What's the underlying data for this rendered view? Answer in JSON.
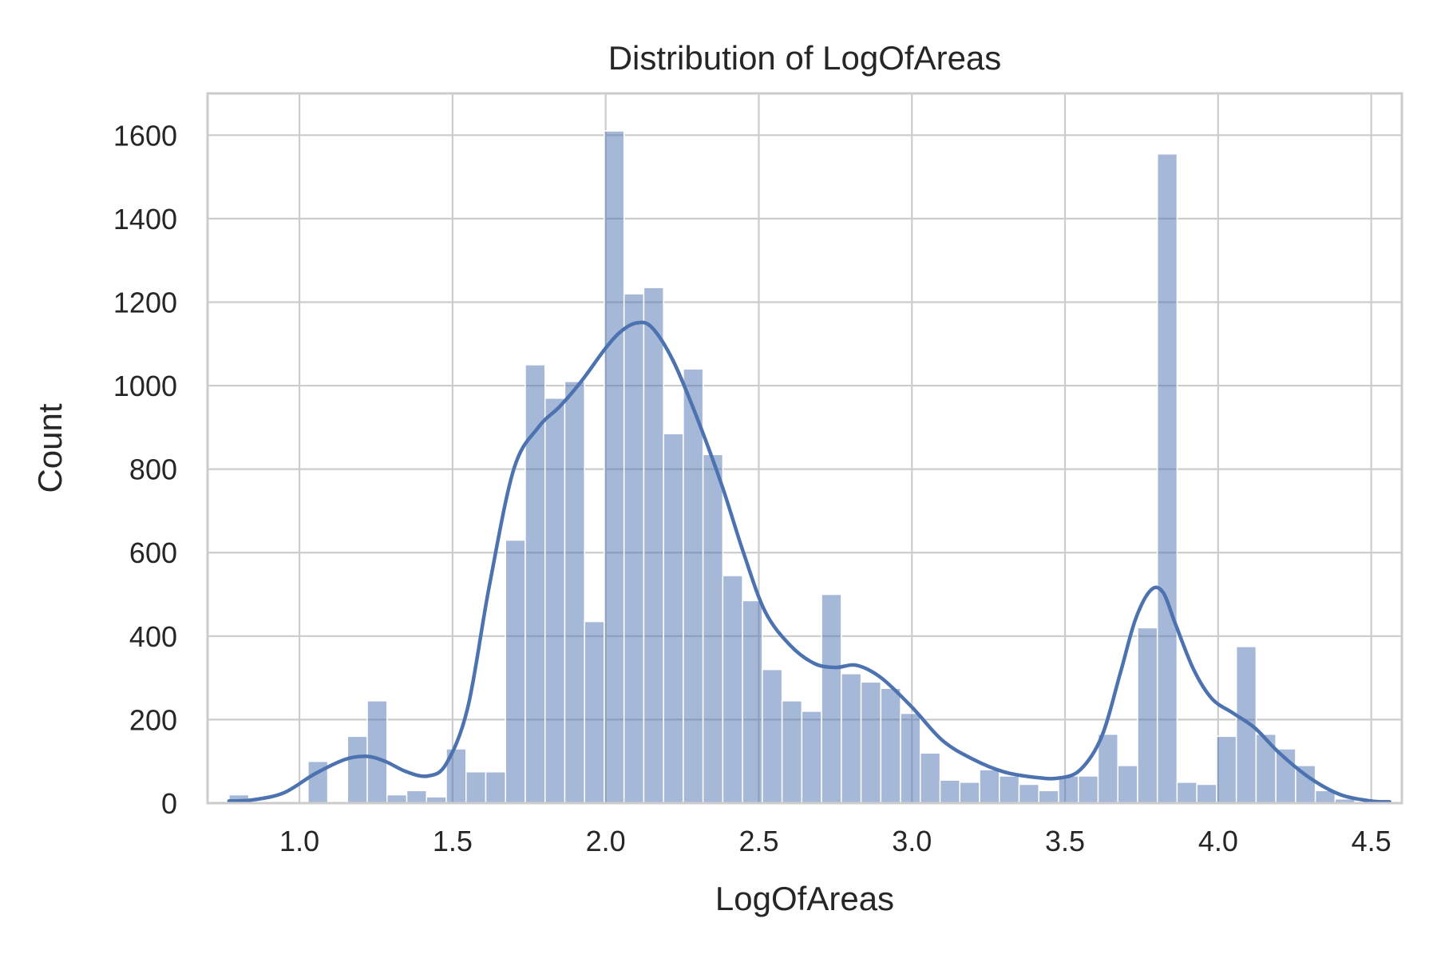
{
  "chart_data": {
    "type": "bar",
    "subtype": "histogram-with-kde",
    "title": "Distribution of LogOfAreas",
    "xlabel": "LogOfAreas",
    "ylabel": "Count",
    "xlim": [
      0.7,
      4.6
    ],
    "ylim": [
      0,
      1700
    ],
    "xticks": [
      1.0,
      1.5,
      2.0,
      2.5,
      3.0,
      3.5,
      4.0,
      4.5
    ],
    "xtick_labels": [
      "1.0",
      "1.5",
      "2.0",
      "2.5",
      "3.0",
      "3.5",
      "4.0",
      "4.5"
    ],
    "yticks": [
      0,
      200,
      400,
      600,
      800,
      1000,
      1200,
      1400,
      1600
    ],
    "ytick_labels": [
      "0",
      "200",
      "400",
      "600",
      "800",
      "1000",
      "1200",
      "1400",
      "1600"
    ],
    "grid": true,
    "color": "#4c72b0",
    "bins": {
      "start": 0.77,
      "width": 0.0645,
      "counts": [
        20,
        0,
        0,
        0,
        100,
        0,
        160,
        245,
        20,
        30,
        15,
        130,
        75,
        75,
        630,
        1050,
        970,
        1010,
        435,
        1610,
        1220,
        1235,
        885,
        1040,
        835,
        545,
        485,
        320,
        245,
        220,
        500,
        310,
        290,
        275,
        215,
        120,
        55,
        50,
        80,
        65,
        45,
        30,
        65,
        65,
        165,
        90,
        420,
        1555,
        50,
        45,
        160,
        375,
        165,
        130,
        90,
        30,
        10
      ]
    },
    "kde": {
      "x": [
        0.77,
        0.85,
        0.95,
        1.05,
        1.15,
        1.22,
        1.28,
        1.35,
        1.42,
        1.48,
        1.55,
        1.62,
        1.7,
        1.78,
        1.85,
        1.92,
        2.0,
        2.05,
        2.1,
        2.15,
        2.22,
        2.3,
        2.38,
        2.45,
        2.52,
        2.6,
        2.68,
        2.75,
        2.82,
        2.9,
        3.0,
        3.1,
        3.2,
        3.3,
        3.4,
        3.48,
        3.55,
        3.62,
        3.68,
        3.73,
        3.78,
        3.82,
        3.86,
        3.92,
        3.98,
        4.05,
        4.12,
        4.2,
        4.3,
        4.4,
        4.5,
        4.56
      ],
      "y": [
        5,
        8,
        25,
        70,
        105,
        112,
        100,
        75,
        65,
        95,
        230,
        520,
        800,
        900,
        950,
        1010,
        1090,
        1130,
        1150,
        1140,
        1060,
        920,
        760,
        600,
        460,
        380,
        335,
        325,
        330,
        300,
        230,
        150,
        105,
        75,
        62,
        60,
        80,
        160,
        310,
        440,
        510,
        505,
        430,
        320,
        250,
        215,
        180,
        120,
        60,
        20,
        5,
        3
      ]
    }
  }
}
